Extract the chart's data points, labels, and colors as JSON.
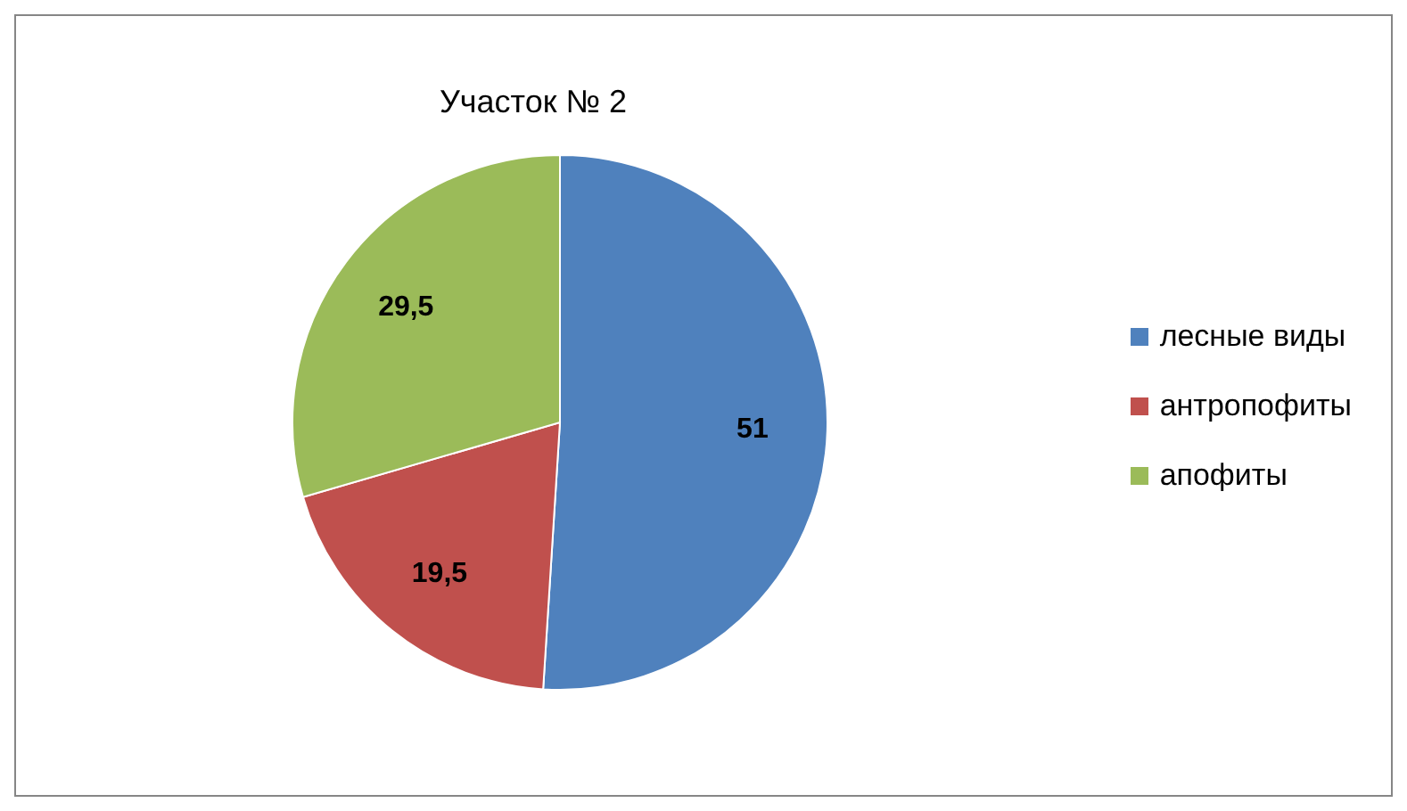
{
  "chart_data": {
    "type": "pie",
    "title": "Участок № 2",
    "categories": [
      "лесные виды",
      "антропофиты",
      "апофиты"
    ],
    "values": [
      51,
      19.5,
      29.5
    ],
    "colors": [
      "#4f81bd",
      "#c0504d",
      "#9bbb59"
    ],
    "value_labels": [
      "51",
      "19,5",
      "29,5"
    ],
    "legend": "right"
  }
}
